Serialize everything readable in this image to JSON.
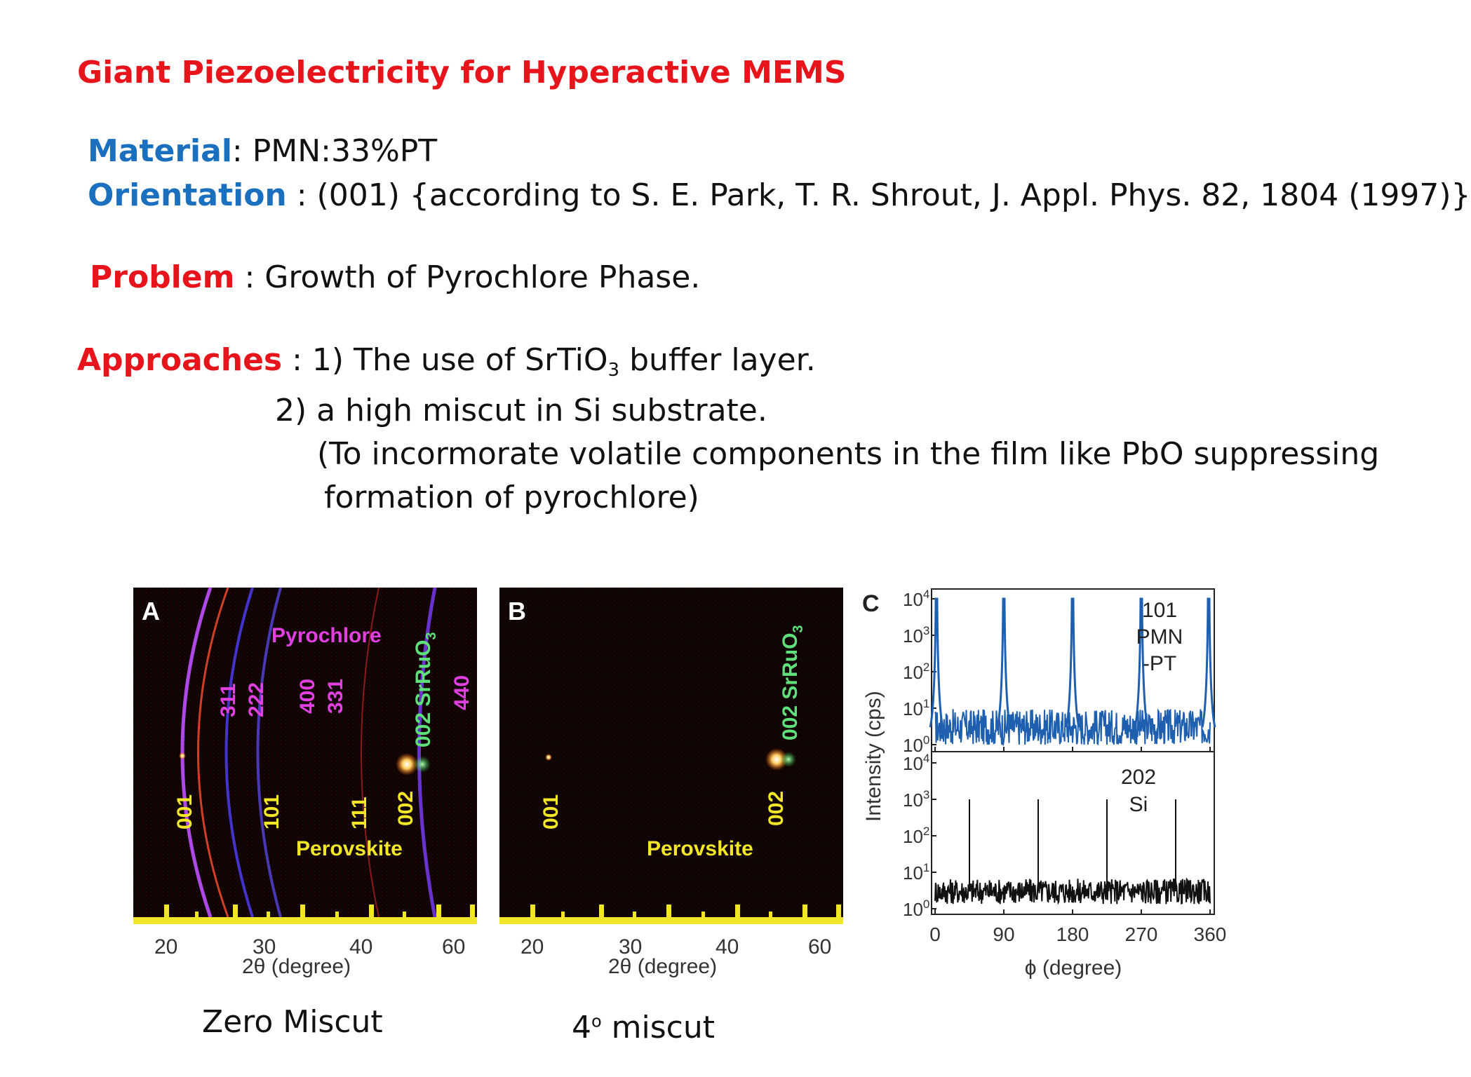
{
  "slide": {
    "title": "Giant Piezoelectricity for Hyperactive MEMS",
    "material_key": "Material",
    "material_value": ": PMN:33%PT",
    "orientation_key": "Orientation",
    "orientation_value": " : (001) {according to S. E. Park, T. R. Shrout, J. Appl. Phys. 82, 1804 (1997)}",
    "problem_key": "Problem",
    "problem_value": " : Growth of Pyrochlore Phase.",
    "approaches_key": "Approaches",
    "approach1_pre": " : 1) The use of SrTiO",
    "approach1_sub": "3",
    "approach1_post": " buffer layer.",
    "approach2": "2) a high miscut in Si substrate.",
    "approach2_note1": "(To incormorate volatile components in the film like PbO suppressing",
    "approach2_note2": "formation of pyrochlore)",
    "caption_a": "Zero Miscut",
    "caption_b_num": "4",
    "caption_b_deg": "o",
    "caption_b_text": " miscut"
  },
  "colors": {
    "title_red": "#e8141c",
    "key_blue": "#1a6fbf",
    "pyro_magenta": "#e040e0",
    "perov_yellow": "#f2e628",
    "srruo_green": "#5fe07a",
    "trace_blue": "#1e5fb0",
    "trace_black": "#111111"
  },
  "panels": {
    "A": {
      "label": "A",
      "pyrochlore": "Pyrochlore",
      "perovskite": "Perovskite",
      "srruo": "002 SrRuO",
      "srruo_sub": "3",
      "pyro_peaks": [
        "311",
        "222",
        "400",
        "331",
        "440"
      ],
      "perov_peaks": [
        "001",
        "101",
        "111",
        "002"
      ],
      "xticks": [
        "20",
        "30",
        "40",
        "60"
      ],
      "xlabel": "2θ (degree)"
    },
    "B": {
      "label": "B",
      "perovskite": "Perovskite",
      "srruo": "002 SrRuO",
      "srruo_sub": "3",
      "perov_peaks": [
        "001",
        "002"
      ],
      "xticks": [
        "20",
        "30",
        "40",
        "60"
      ],
      "xlabel": "2θ (degree)"
    },
    "C": {
      "label": "C",
      "ylabel": "Intensity (cps)",
      "xlabel": "ϕ (degree)",
      "yticks": [
        "10",
        "10",
        "10",
        "10",
        "10"
      ],
      "ytick_exps": [
        "4",
        "3",
        "2",
        "1",
        "0"
      ],
      "xticks": [
        "0",
        "90",
        "180",
        "270",
        "360"
      ],
      "top_label": [
        "101",
        "PMN",
        "-PT"
      ],
      "bottom_label": [
        "202",
        "Si"
      ]
    }
  },
  "chart_data": {
    "type": "line",
    "title": "",
    "xlabel": "ϕ (degree)",
    "ylabel": "Intensity (cps)",
    "xlim": [
      0,
      360
    ],
    "ylim": [
      1,
      10000
    ],
    "yscale": "log",
    "series": [
      {
        "name": "101 PMN-PT",
        "peaks_x": [
          0,
          90,
          180,
          270,
          360
        ],
        "peak_y": 10000,
        "baseline_y": 3
      },
      {
        "name": "202 Si",
        "peaks_x": [
          45,
          135,
          225,
          315
        ],
        "peak_y": 1000,
        "baseline_y": 3
      }
    ]
  }
}
